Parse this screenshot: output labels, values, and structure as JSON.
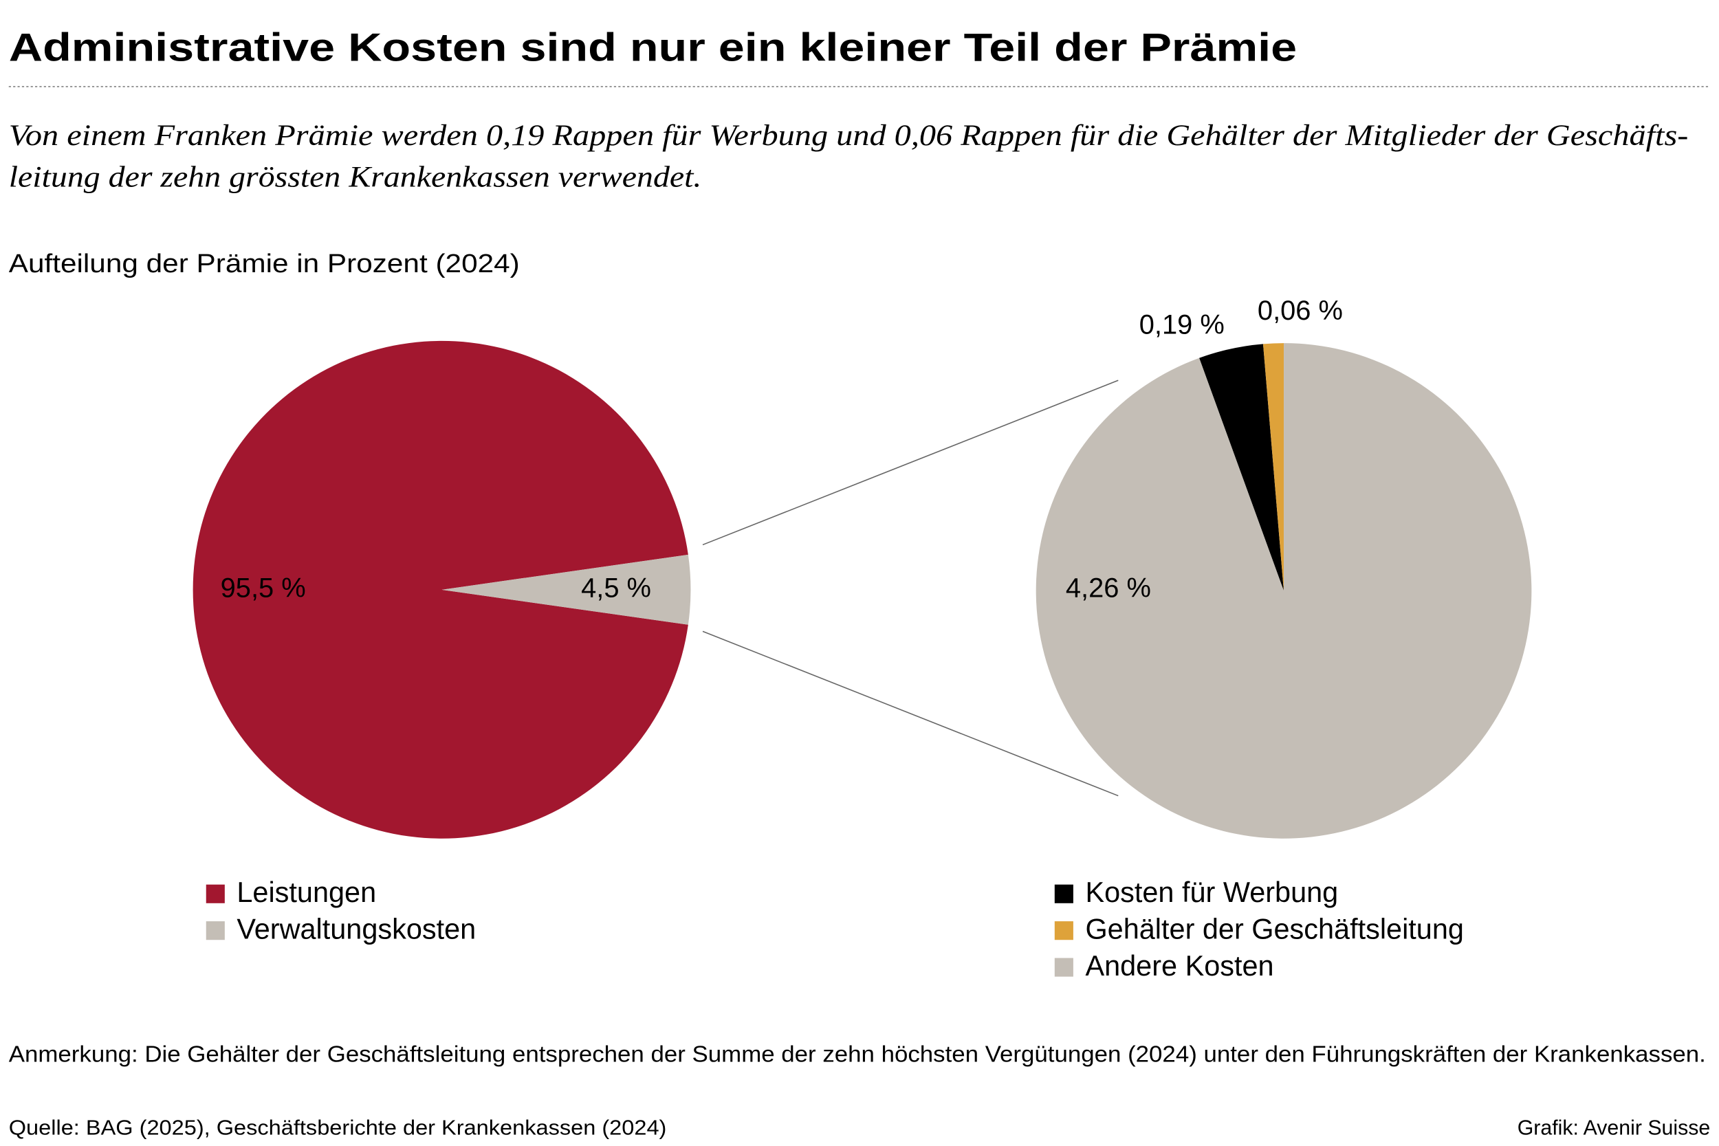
{
  "title": "Administrative Kosten sind nur ein kleiner Teil der Prämie",
  "subtitle": [
    "Von einem Franken Prämie werden 0,19 Rappen für Werbung und 0,06 Rappen für die Gehälter der Mitglieder der Geschäfts-",
    "leitung der zehn grössten Krankenkassen verwendet."
  ],
  "heading": "Aufteilung der Prämie in Prozent (2024)",
  "note": "Anmerkung: Die Gehälter der Geschäftsleitung entsprechen der Summe der zehn höchsten Vergütungen (2024) unter den Führungskräften der Krankenkassen.",
  "source": "Quelle: BAG (2025), Geschäftsberichte der Krankenkassen (2024)",
  "credit": "Grafik: Avenir Suisse",
  "chart_data": [
    {
      "type": "pie",
      "categories": [
        "Leistungen",
        "Verwaltungskosten"
      ],
      "values": [
        95.5,
        4.5
      ],
      "value_labels": [
        "95,5 %",
        "4,5 %"
      ],
      "colors": [
        "#a2172f",
        "#c4beb6"
      ]
    },
    {
      "type": "pie",
      "categories": [
        "Kosten für Werbung",
        "Gehälter der Geschäftsleitung",
        "Andere Kosten"
      ],
      "values": [
        0.19,
        0.06,
        4.26
      ],
      "value_labels": [
        "0,19 %",
        "0,06 %",
        "4,26 %"
      ],
      "colors": [
        "#000000",
        "#dea23a",
        "#c4beb6"
      ]
    }
  ]
}
